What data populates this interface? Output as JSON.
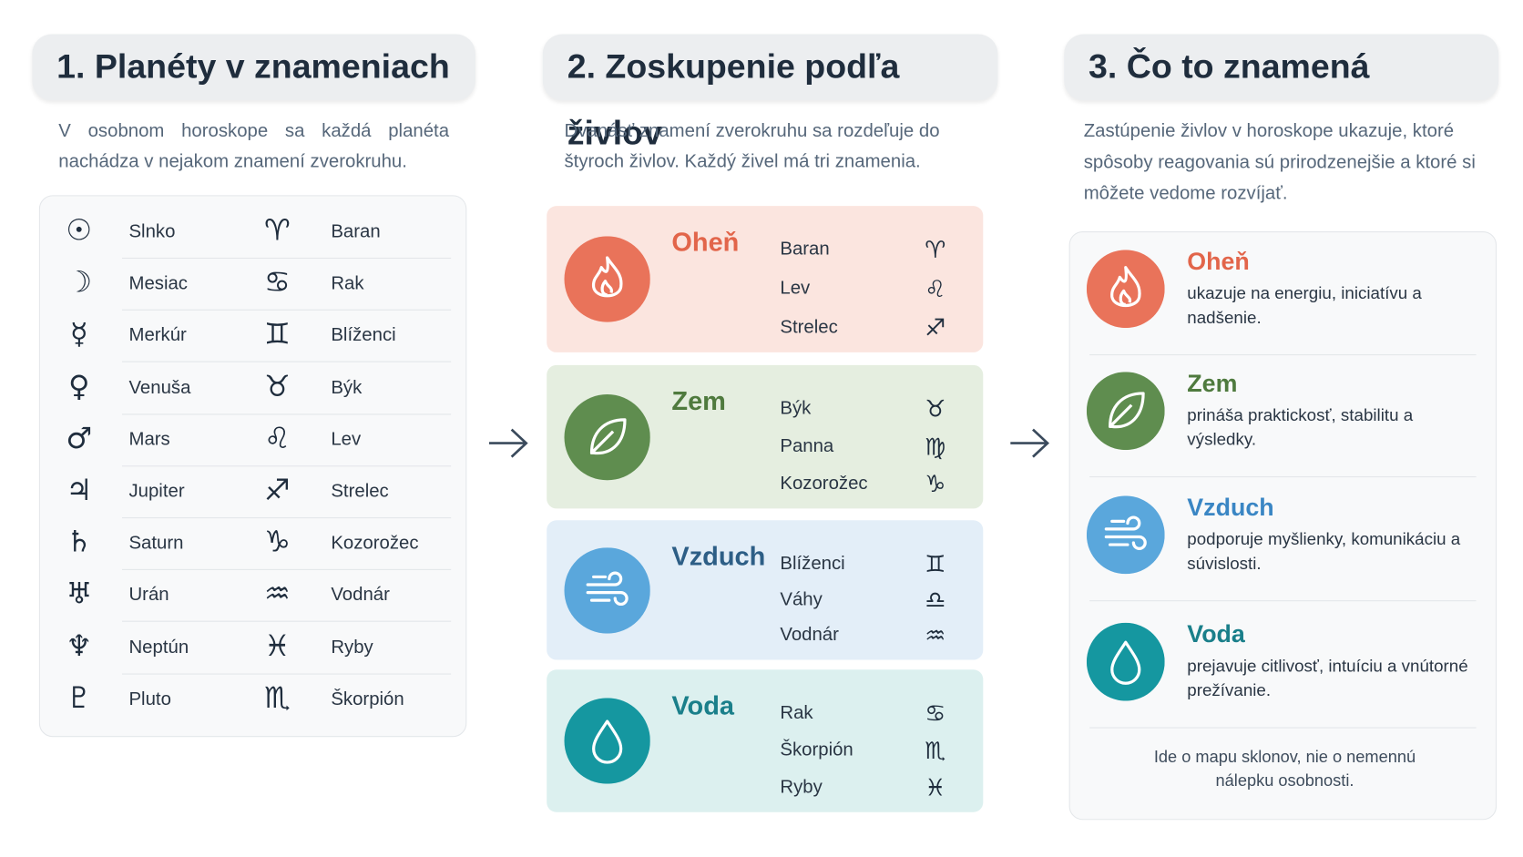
{
  "panels": [
    {
      "title": "1. Planéty v znameniach",
      "description": "V osobnom horoskope sa každá planéta nachádza v nejakom znamení zverokruhu.",
      "rows": [
        {
          "planet_symbol": "☉",
          "planet": "Slnko",
          "sign_symbol": "♈",
          "sign": "Baran"
        },
        {
          "planet_symbol": "☽",
          "planet": "Mesiac",
          "sign_symbol": "♋",
          "sign": "Rak"
        },
        {
          "planet_symbol": "☿",
          "planet": "Merkúr",
          "sign_symbol": "♊",
          "sign": "Blíženci"
        },
        {
          "planet_symbol": "♀",
          "planet": "Venuša",
          "sign_symbol": "♉",
          "sign": "Býk"
        },
        {
          "planet_symbol": "♂",
          "planet": "Mars",
          "sign_symbol": "♌",
          "sign": "Lev"
        },
        {
          "planet_symbol": "♃",
          "planet": "Jupiter",
          "sign_symbol": "♐",
          "sign": "Strelec"
        },
        {
          "planet_symbol": "♄",
          "planet": "Saturn",
          "sign_symbol": "♑",
          "sign": "Kozorožec"
        },
        {
          "planet_symbol": "♅",
          "planet": "Urán",
          "sign_symbol": "♒",
          "sign": "Vodnár"
        },
        {
          "planet_symbol": "♆",
          "planet": "Neptún",
          "sign_symbol": "♓",
          "sign": "Ryby"
        },
        {
          "planet_symbol": "♇",
          "planet": "Pluto",
          "sign_symbol": "♏",
          "sign": "Škorpión"
        }
      ]
    },
    {
      "title": "2. Zoskupenie podľa živlov",
      "description": "Dvanásť znamení zverokruhu sa rozdeľuje do štyroch živlov. Každý živel má tri znamenia.",
      "elements": [
        {
          "name": "Oheň",
          "signs": [
            {
              "name": "Baran",
              "symbol": "♈"
            },
            {
              "name": "Lev",
              "symbol": "♌"
            },
            {
              "name": "Strelec",
              "symbol": "♐"
            }
          ]
        },
        {
          "name": "Zem",
          "signs": [
            {
              "name": "Býk",
              "symbol": "♉"
            },
            {
              "name": "Panna",
              "symbol": "♍"
            },
            {
              "name": "Kozorožec",
              "symbol": "♑"
            }
          ]
        },
        {
          "name": "Vzduch",
          "signs": [
            {
              "name": "Blíženci",
              "symbol": "♊"
            },
            {
              "name": "Váhy",
              "symbol": "♎"
            },
            {
              "name": "Vodnár",
              "symbol": "♒"
            }
          ]
        },
        {
          "name": "Voda",
          "signs": [
            {
              "name": "Rak",
              "symbol": "♋"
            },
            {
              "name": "Škorpión",
              "symbol": "♏"
            },
            {
              "name": "Ryby",
              "symbol": "♓"
            }
          ]
        }
      ]
    },
    {
      "title": "3. Čo to znamená",
      "description": "Zastúpenie živlov v horoskope ukazuje, ktoré spôsoby reagovania sú prirodzenejšie a ktoré si môžete vedome rozvíjať.",
      "elements": [
        {
          "name": "Oheň",
          "text": "ukazuje na energiu, iniciatívu a nadšenie."
        },
        {
          "name": "Zem",
          "text": "prináša praktickosť, stabilitu a výsledky."
        },
        {
          "name": "Vzduch",
          "text": "podporuje myšlienky, komunikáciu a súvislosti."
        },
        {
          "name": "Voda",
          "text": "prejavuje citlivosť, intuíciu a vnútorné prežívanie."
        }
      ],
      "note": "Ide o mapu sklonov, nie o nemennú nálepku osobnosti."
    }
  ]
}
